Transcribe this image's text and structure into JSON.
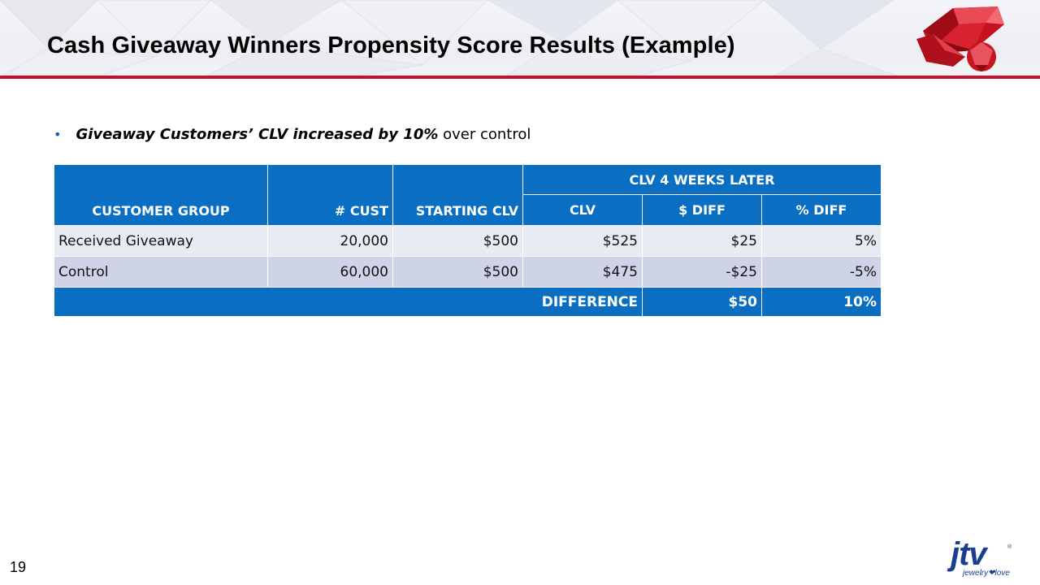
{
  "slide": {
    "title": "Cash Giveaway Winners Propensity Score Results (Example)",
    "page_number": "19"
  },
  "bullet": {
    "marker": "•",
    "emphasis": "Giveaway Customers’ CLV increased by 10%",
    "rest": " over control"
  },
  "table": {
    "headers": {
      "customer_group": "CUSTOMER GROUP",
      "num_cust": "# CUST",
      "starting_clv": "STARTING CLV",
      "group_label": "CLV 4 WEEKS LATER",
      "clv": "CLV",
      "dollar_diff": "$ DIFF",
      "pct_diff": "% DIFF"
    },
    "rows": [
      {
        "group": "Received Giveaway",
        "cust": "20,000",
        "starting": "$500",
        "clv": "$525",
        "dollar_diff": "$25",
        "pct_diff": "5%"
      },
      {
        "group": "Control",
        "cust": "60,000",
        "starting": "$500",
        "clv": "$475",
        "dollar_diff": "-$25",
        "pct_diff": "-5%"
      }
    ],
    "total": {
      "label": "DIFFERENCE",
      "dollar_diff": "$50",
      "pct_diff": "10%"
    }
  },
  "logo": {
    "main": "jtv",
    "registered": "®",
    "tagline": "jewelry❤love"
  },
  "colors": {
    "accent_red": "#c8102e",
    "table_blue": "#0a6fc2",
    "row_light": "#e8eaf4",
    "row_dark": "#cfd3e8",
    "logo_blue": "#1b3f8f"
  }
}
